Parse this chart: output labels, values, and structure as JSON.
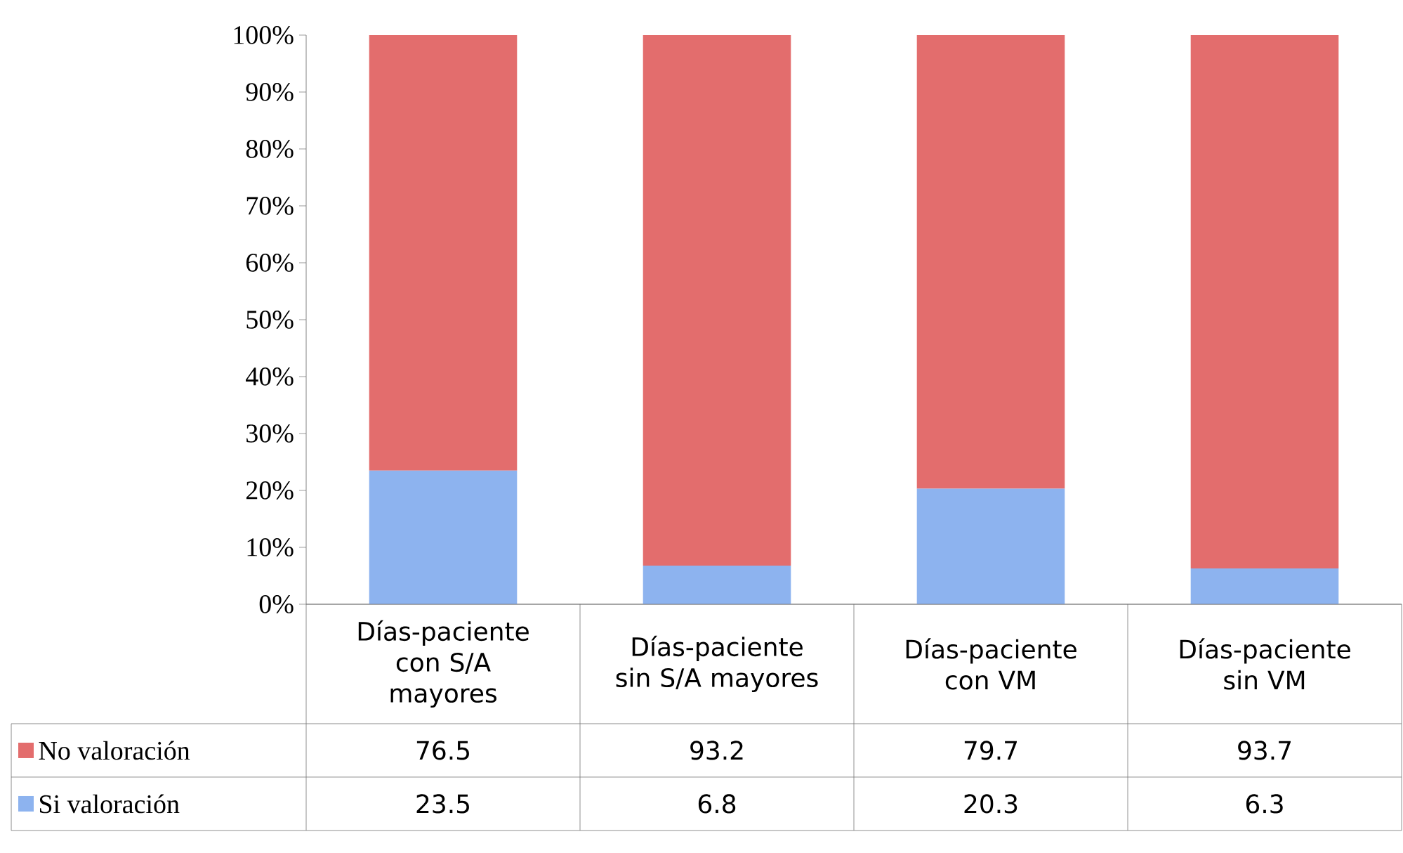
{
  "chart_data": {
    "type": "bar",
    "stacked": true,
    "categories": [
      "Días-paciente con S/A mayores",
      "Días-paciente sin S/A mayores",
      "Días-paciente con VM",
      "Días-paciente sin VM"
    ],
    "series": [
      {
        "name": "Si valoración",
        "color": "#8db3ef",
        "values": [
          23.5,
          6.8,
          20.3,
          6.3
        ]
      },
      {
        "name": "No valoración",
        "color": "#e36d6d",
        "values": [
          76.5,
          93.2,
          79.7,
          93.7
        ]
      }
    ],
    "ylim": [
      0,
      100
    ],
    "yticks": [
      {
        "value": 0,
        "label": "0%"
      },
      {
        "value": 10,
        "label": "10%"
      },
      {
        "value": 20,
        "label": "20%"
      },
      {
        "value": 30,
        "label": "30%"
      },
      {
        "value": 40,
        "label": "40%"
      },
      {
        "value": 50,
        "label": "50%"
      },
      {
        "value": 60,
        "label": "60%"
      },
      {
        "value": 70,
        "label": "70%"
      },
      {
        "value": 80,
        "label": "80%"
      },
      {
        "value": 90,
        "label": "90%"
      },
      {
        "value": 100,
        "label": "100%"
      }
    ],
    "data_labels": true,
    "legend": "bottom left",
    "grid": false
  }
}
